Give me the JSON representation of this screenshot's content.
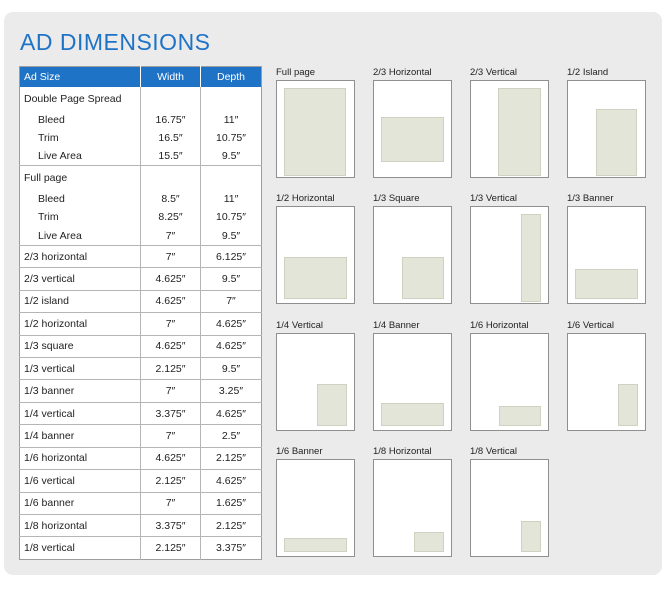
{
  "title": "AD DIMENSIONS",
  "table": {
    "headers": {
      "name": "Ad Size",
      "width": "Width",
      "depth": "Depth"
    },
    "groups": [
      {
        "label": "Double Page Spread",
        "rows": [
          {
            "label": "Bleed",
            "width": "16.75″",
            "depth": "11″"
          },
          {
            "label": "Trim",
            "width": "16.5″",
            "depth": "10.75″"
          },
          {
            "label": "Live Area",
            "width": "15.5″",
            "depth": "9.5″"
          }
        ]
      },
      {
        "label": "Full page",
        "rows": [
          {
            "label": "Bleed",
            "width": "8.5″",
            "depth": "11″"
          },
          {
            "label": "Trim",
            "width": "8.25″",
            "depth": "10.75″"
          },
          {
            "label": "Live Area",
            "width": "7″",
            "depth": "9.5″"
          }
        ]
      }
    ],
    "rows": [
      {
        "label": "2/3 horizontal",
        "width": "7″",
        "depth": "6.125″"
      },
      {
        "label": "2/3 vertical",
        "width": "4.625″",
        "depth": "9.5″"
      },
      {
        "label": "1/2 island",
        "width": "4.625″",
        "depth": "7″"
      },
      {
        "label": "1/2 horizontal",
        "width": "7″",
        "depth": "4.625″"
      },
      {
        "label": "1/3 square",
        "width": "4.625″",
        "depth": "4.625″"
      },
      {
        "label": "1/3 vertical",
        "width": "2.125″",
        "depth": "9.5″"
      },
      {
        "label": "1/3 banner",
        "width": "7″",
        "depth": "3.25″"
      },
      {
        "label": "1/4 vertical",
        "width": "3.375″",
        "depth": "4.625″"
      },
      {
        "label": "1/4 banner",
        "width": "7″",
        "depth": "2.5″"
      },
      {
        "label": "1/6 horizontal",
        "width": "4.625″",
        "depth": "2.125″"
      },
      {
        "label": "1/6 vertical",
        "width": "2.125″",
        "depth": "4.625″"
      },
      {
        "label": "1/6 banner",
        "width": "7″",
        "depth": "1.625″"
      },
      {
        "label": "1/8 horizontal",
        "width": "3.375″",
        "depth": "2.125″"
      },
      {
        "label": "1/8 vertical",
        "width": "2.125″",
        "depth": "3.375″"
      }
    ]
  },
  "thumbnails": [
    {
      "label": "Full page"
    },
    {
      "label": "2/3 Horizontal"
    },
    {
      "label": "2/3 Vertical"
    },
    {
      "label": "1/2 Island"
    },
    {
      "label": "1/2 Horizontal"
    },
    {
      "label": "1/3 Square"
    },
    {
      "label": "1/3 Vertical"
    },
    {
      "label": "1/3 Banner"
    },
    {
      "label": "1/4 Vertical"
    },
    {
      "label": "1/4 Banner"
    },
    {
      "label": "1/6 Horizontal"
    },
    {
      "label": "1/6 Vertical"
    },
    {
      "label": "1/6 Banner"
    },
    {
      "label": "1/8 Horizontal"
    },
    {
      "label": "1/8 Vertical"
    }
  ],
  "colors": {
    "accent": "#1f73c6",
    "ad_fill": "#e4e5d9",
    "panel": "#ebebeb"
  }
}
